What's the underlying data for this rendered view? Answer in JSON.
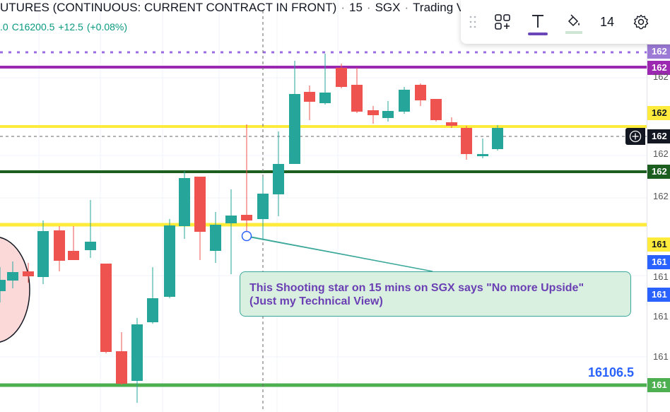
{
  "header": {
    "title": "UTURES (CONTINUOUS: CURRENT CONTRACT IN FRONT)",
    "interval": "15",
    "exchange": "SGX",
    "source": "Trading Vi",
    "ohlc": {
      "open_fragment": ".0",
      "close": "C16200.5",
      "change": "+12.5",
      "change_pct": "(+0.08%)"
    }
  },
  "toolbar": {
    "items": [
      {
        "icon": "drag-handle-icon"
      },
      {
        "icon": "add-object-icon"
      },
      {
        "icon": "text-tool-icon"
      },
      {
        "icon": "fill-color-icon"
      },
      {
        "value": "14"
      },
      {
        "icon": "gear-icon"
      }
    ],
    "font_size": "14",
    "accent_color": "#6a46b8"
  },
  "annotation": {
    "line1": "This Shooting star on 15 mins on SGX says \"No more Upside\"",
    "line2": "(Just my Technical View)"
  },
  "price_label": "16106.5",
  "price_axis": {
    "tags": [
      {
        "text": "162",
        "bg": "#9c7ad6",
        "fg": "#ffffff"
      },
      {
        "text": "162",
        "bg": "#9c27b0",
        "fg": "#ffffff"
      },
      {
        "text": "162",
        "bg": "#ffeb3b",
        "fg": "#131722"
      },
      {
        "text": "162",
        "bg": "#131722",
        "fg": "#ffffff"
      },
      {
        "text": "162",
        "bg": "#1b5e20",
        "fg": "#ffffff"
      },
      {
        "text": "161",
        "bg": "#ffeb3b",
        "fg": "#131722"
      },
      {
        "text": "161",
        "bg": "#2962ff",
        "fg": "#ffffff"
      },
      {
        "text": "161",
        "bg": "#2962ff",
        "fg": "#ffffff"
      },
      {
        "text": "161",
        "bg": "#4caf50",
        "fg": "#ffffff"
      }
    ],
    "ticks": [
      "162",
      "162",
      "162",
      "161",
      "161",
      "161"
    ]
  },
  "horizontal_lines": [
    {
      "name": "dotted-purple",
      "color": "#9c6ce0",
      "style": "dotted"
    },
    {
      "name": "purple",
      "color": "#9c27b0",
      "style": "solid"
    },
    {
      "name": "yellow-upper",
      "color": "#ffeb3b",
      "style": "solid"
    },
    {
      "name": "dark-green",
      "color": "#1b5e20",
      "style": "solid"
    },
    {
      "name": "yellow-lower",
      "color": "#ffeb3b",
      "style": "solid"
    },
    {
      "name": "green-bottom",
      "color": "#4caf50",
      "style": "solid"
    }
  ],
  "colors": {
    "up": "#26a69a",
    "down": "#ef5350",
    "annotation_text": "#6a3fb3",
    "annotation_bg": "#d9f0e0",
    "annotation_border": "#3aa89a"
  }
}
